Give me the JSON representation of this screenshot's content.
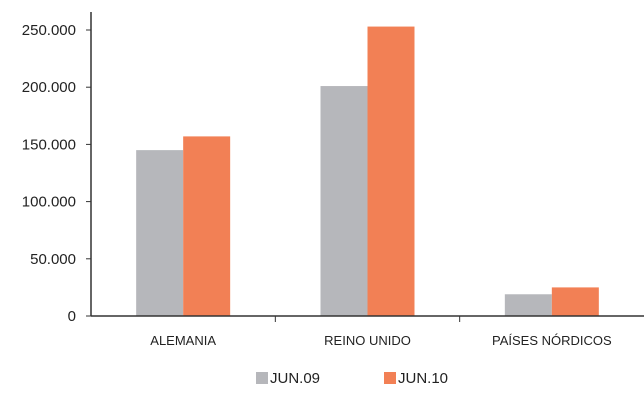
{
  "chart_data": {
    "type": "bar",
    "title": "",
    "xlabel": "",
    "ylabel": "",
    "categories": [
      "ALEMANIA",
      "REINO UNIDO",
      "PAÍSES NÓRDICOS"
    ],
    "series": [
      {
        "name": "JUN.09",
        "values": [
          145000,
          201000,
          19000
        ],
        "color": "#b6b7bb"
      },
      {
        "name": "JUN.10",
        "values": [
          157000,
          253000,
          25000
        ],
        "color": "#f28055"
      }
    ],
    "ylim": [
      0,
      250000
    ],
    "yticks": [
      0,
      50000,
      100000,
      150000,
      200000,
      250000
    ],
    "ytick_labels": [
      "0",
      "50.000",
      "100.000",
      "150.000",
      "200.000",
      "250.000"
    ],
    "grid": false,
    "legend_position": "bottom"
  }
}
